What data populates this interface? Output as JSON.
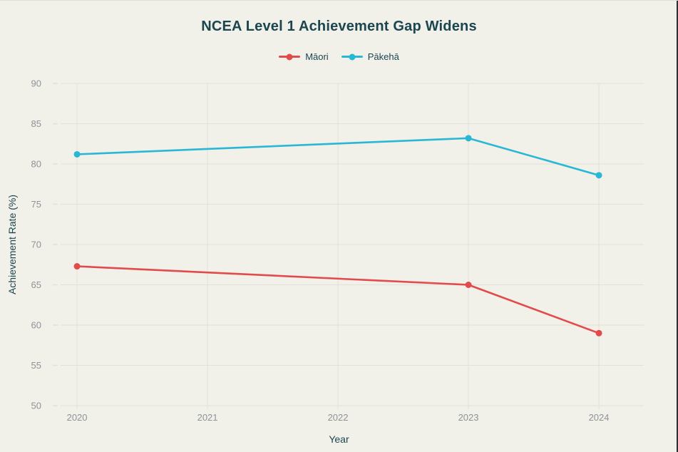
{
  "page": {
    "background_color": "#f1f0e9"
  },
  "chart_data": {
    "type": "line",
    "title": "NCEA Level 1 Achievement Gap Widens",
    "xlabel": "Year",
    "ylabel": "Achievement Rate (%)",
    "title_color": "#1b4650",
    "axis_title_color": "#1b4650",
    "legend_text_color": "#1b4650",
    "tick_label_color": "#8e9398",
    "grid": true,
    "grid_color": "#e2e1d9",
    "legend_position": "top-center",
    "xlim": [
      2019.874,
      2024.344
    ],
    "ylim": [
      50,
      90
    ],
    "x_ticks": [
      2020,
      2021,
      2022,
      2023,
      2024
    ],
    "y_ticks": [
      50,
      55,
      60,
      65,
      70,
      75,
      80,
      85,
      90
    ],
    "series": [
      {
        "name": "Māori",
        "color": "#e14b4b",
        "x": [
          2020,
          2023,
          2024
        ],
        "y": [
          67.3,
          65.0,
          59.0
        ]
      },
      {
        "name": "Pākehā",
        "color": "#29b7d6",
        "x": [
          2020,
          2023,
          2024
        ],
        "y": [
          81.2,
          83.2,
          78.6
        ]
      }
    ]
  }
}
